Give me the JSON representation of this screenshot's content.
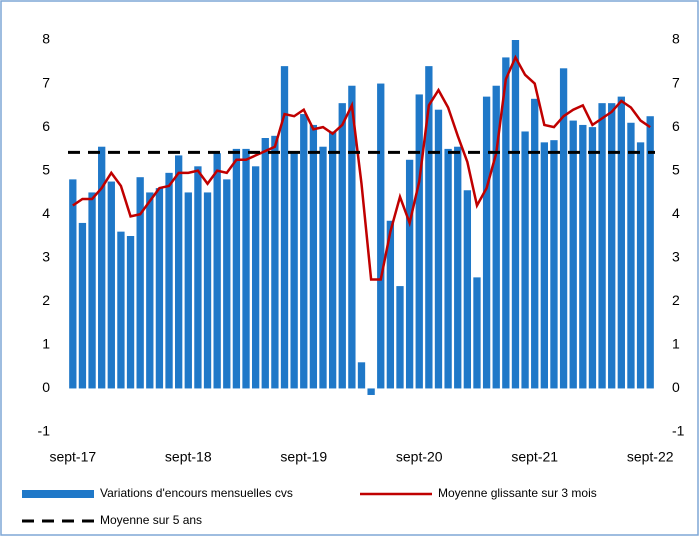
{
  "chart_data": {
    "type": "bar-line",
    "categories": [
      "sept-17",
      null,
      null,
      null,
      null,
      null,
      null,
      null,
      null,
      null,
      null,
      null,
      "sept-18",
      null,
      null,
      null,
      null,
      null,
      null,
      null,
      null,
      null,
      null,
      null,
      "sept-19",
      null,
      null,
      null,
      null,
      null,
      null,
      null,
      null,
      null,
      null,
      null,
      "sept-20",
      null,
      null,
      null,
      null,
      null,
      null,
      null,
      null,
      null,
      null,
      null,
      "sept-21",
      null,
      null,
      null,
      null,
      null,
      null,
      null,
      null,
      null,
      null,
      null,
      "sept-22"
    ],
    "series": [
      {
        "name": "Variations d'encours mensuelles cvs",
        "type": "bar",
        "color": "#1f78c8",
        "values": [
          4.8,
          3.8,
          4.5,
          5.55,
          4.75,
          3.6,
          3.5,
          4.85,
          4.5,
          4.6,
          4.95,
          5.35,
          4.5,
          5.1,
          4.5,
          5.4,
          4.8,
          5.5,
          5.5,
          5.1,
          5.75,
          5.8,
          7.4,
          5.45,
          6.3,
          6.05,
          5.55,
          5.9,
          6.55,
          6.95,
          0.6,
          -0.15,
          7.0,
          3.85,
          2.35,
          5.25,
          6.75,
          7.4,
          6.4,
          5.5,
          5.55,
          4.55,
          2.55,
          6.7,
          6.95,
          7.6,
          8.0,
          5.9,
          6.65,
          5.65,
          5.7,
          7.35,
          6.15,
          6.05,
          6.0,
          6.55,
          6.55,
          6.7,
          6.1,
          5.65,
          6.25
        ]
      },
      {
        "name": "Moyenne glissante sur 3 mois",
        "type": "line",
        "color": "#c00000",
        "values": [
          4.2,
          4.35,
          4.35,
          4.6,
          4.95,
          4.65,
          3.95,
          4.0,
          4.3,
          4.6,
          4.65,
          4.95,
          4.95,
          5.0,
          4.7,
          5.0,
          4.95,
          5.25,
          5.25,
          5.35,
          5.45,
          5.55,
          6.3,
          6.25,
          6.4,
          5.95,
          6.0,
          5.85,
          6.05,
          6.5,
          4.7,
          2.5,
          2.5,
          3.6,
          4.4,
          3.8,
          4.75,
          6.5,
          6.85,
          6.45,
          5.8,
          5.2,
          4.2,
          4.6,
          5.4,
          7.1,
          7.6,
          7.2,
          7.0,
          6.05,
          6.0,
          6.25,
          6.4,
          6.5,
          6.05,
          6.2,
          6.35,
          6.6,
          6.45,
          6.15,
          6.0
        ]
      },
      {
        "name": "Moyenne sur 5 ans",
        "type": "hline",
        "color": "#000000",
        "value": 5.42
      }
    ],
    "ylim": [
      -1,
      8
    ],
    "yticks": [
      -1,
      0,
      1,
      2,
      3,
      4,
      5,
      6,
      7,
      8
    ],
    "y2lim": [
      -1,
      8
    ],
    "y2ticks": [
      -1,
      0,
      1,
      2,
      3,
      4,
      5,
      6,
      7,
      8
    ]
  }
}
